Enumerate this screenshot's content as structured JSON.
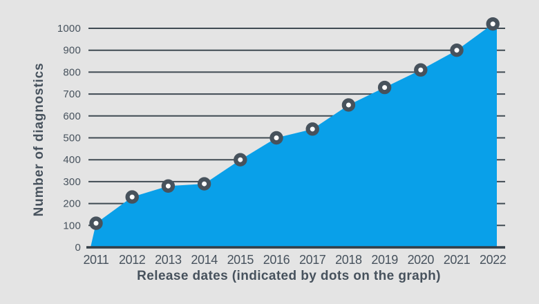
{
  "colors": {
    "background": "#e4e4e4",
    "area_fill": "#09a0e9",
    "gridline": "#3f4a52",
    "axis_line": "#343e46",
    "tick_text": "#47525d",
    "title_text": "#47525d",
    "dot_ring": "#47525c",
    "dot_center": "#ffffff"
  },
  "chart_data": {
    "type": "area",
    "title": "",
    "xlabel": "Release dates (indicated by dots on the graph)",
    "ylabel": "Number of diagnostics",
    "categories": [
      "2011",
      "2012",
      "2013",
      "2014",
      "2015",
      "2016",
      "2017",
      "2018",
      "2019",
      "2020",
      "2021",
      "2022"
    ],
    "values": [
      110,
      230,
      280,
      290,
      400,
      500,
      540,
      650,
      730,
      810,
      900,
      1020
    ],
    "yticks": [
      0,
      100,
      200,
      300,
      400,
      500,
      600,
      700,
      800,
      900,
      1000
    ],
    "ylim": [
      0,
      1050
    ],
    "grid": "horizontal",
    "legend": "none",
    "marker": "ring-dot"
  }
}
